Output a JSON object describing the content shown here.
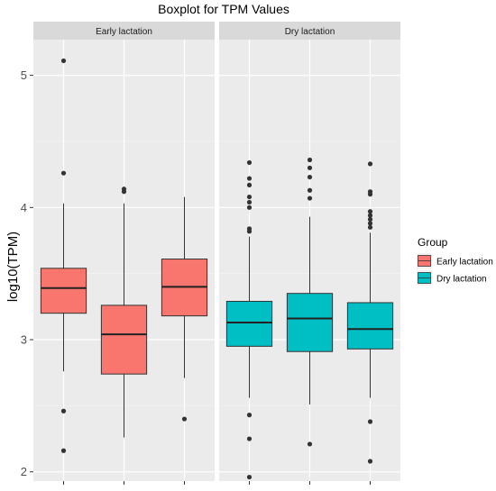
{
  "chart_data": {
    "type": "boxplot",
    "title": "Boxplot for TPM Values",
    "xlabel": "",
    "ylabel": "log10(TPM)",
    "ylim": [
      1.93,
      5.27
    ],
    "yticks": [
      2,
      3,
      4,
      5
    ],
    "grid": true,
    "legend": {
      "title": "Group",
      "placement": "right",
      "entries": [
        {
          "name": "Early lactation",
          "color": "#F8766D"
        },
        {
          "name": "Dry lactation",
          "color": "#00BFC4"
        }
      ]
    },
    "facets": [
      {
        "label": "Early lactation",
        "group": "Early lactation",
        "color": "#F8766D",
        "boxes": [
          {
            "q1": 3.2,
            "median": 3.39,
            "q3": 3.54,
            "whisker_low": 2.76,
            "whisker_high": 4.03,
            "outliers": [
              5.11,
              4.26,
              2.46,
              2.16
            ]
          },
          {
            "q1": 2.74,
            "median": 3.04,
            "q3": 3.26,
            "whisker_low": 2.26,
            "whisker_high": 4.03,
            "outliers": [
              4.14,
              4.12
            ]
          },
          {
            "q1": 3.18,
            "median": 3.4,
            "q3": 3.61,
            "whisker_low": 2.71,
            "whisker_high": 4.08,
            "outliers": [
              2.4
            ]
          }
        ]
      },
      {
        "label": "Dry lactation",
        "group": "Dry lactation",
        "color": "#00BFC4",
        "boxes": [
          {
            "q1": 2.95,
            "median": 3.13,
            "q3": 3.29,
            "whisker_low": 2.56,
            "whisker_high": 3.78,
            "outliers": [
              4.34,
              4.22,
              4.17,
              4.08,
              4.04,
              4.0,
              3.84,
              3.82,
              2.43,
              2.25,
              1.96
            ]
          },
          {
            "q1": 2.91,
            "median": 3.16,
            "q3": 3.35,
            "whisker_low": 2.51,
            "whisker_high": 3.93,
            "outliers": [
              4.36,
              4.3,
              4.23,
              4.13,
              4.07,
              2.21
            ]
          },
          {
            "q1": 2.93,
            "median": 3.08,
            "q3": 3.28,
            "whisker_low": 2.56,
            "whisker_high": 3.81,
            "outliers": [
              4.33,
              4.12,
              4.1,
              3.97,
              3.94,
              3.91,
              3.88,
              3.85,
              2.38,
              2.08
            ]
          }
        ]
      }
    ]
  }
}
